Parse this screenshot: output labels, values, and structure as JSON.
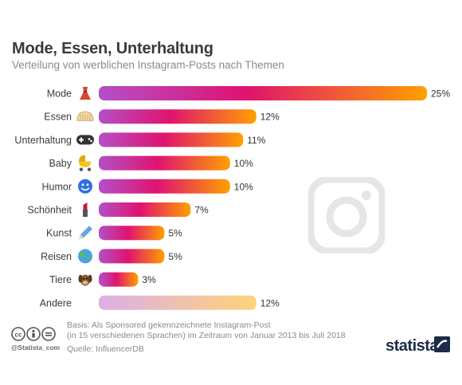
{
  "header": {
    "title": "Mode, Essen, Unterhaltung",
    "subtitle": "Verteilung von werblichen Instagram-Posts nach Themen"
  },
  "chart_data": {
    "type": "bar",
    "orientation": "horizontal",
    "categories": [
      "Mode",
      "Essen",
      "Unterhaltung",
      "Baby",
      "Humor",
      "Schönheit",
      "Kunst",
      "Reisen",
      "Tiere",
      "Andere"
    ],
    "values": [
      25,
      12,
      11,
      10,
      10,
      7,
      5,
      5,
      3,
      12
    ],
    "value_labels": [
      "25%",
      "12%",
      "11%",
      "10%",
      "10%",
      "7%",
      "5%",
      "5%",
      "3%",
      "12%"
    ],
    "icons": [
      "dress-icon",
      "bread-icon",
      "gamepad-icon",
      "stroller-icon",
      "smiley-icon",
      "lipstick-icon",
      "pencil-icon",
      "globe-icon",
      "dog-icon",
      ""
    ],
    "unit": "%",
    "xlim": [
      0,
      25
    ],
    "grid": false,
    "colors": {
      "gradient_start": "#b44fc8",
      "gradient_mid": "#e0136f",
      "gradient_end": "#ffa000",
      "other_start": "#dcb0e6",
      "other_end": "#ffd27a"
    }
  },
  "footer": {
    "basis_line1": "Basis: Als Sponsored gekennzeichnete Instagram-Post",
    "basis_line2": "(in 15 verschiedenen Sprachen) im Zeitraum von Januar 2013 bis Juli 2018",
    "source": "Quelle: InfluencerDB",
    "handle": "@Statista_com",
    "brand": "statista"
  }
}
